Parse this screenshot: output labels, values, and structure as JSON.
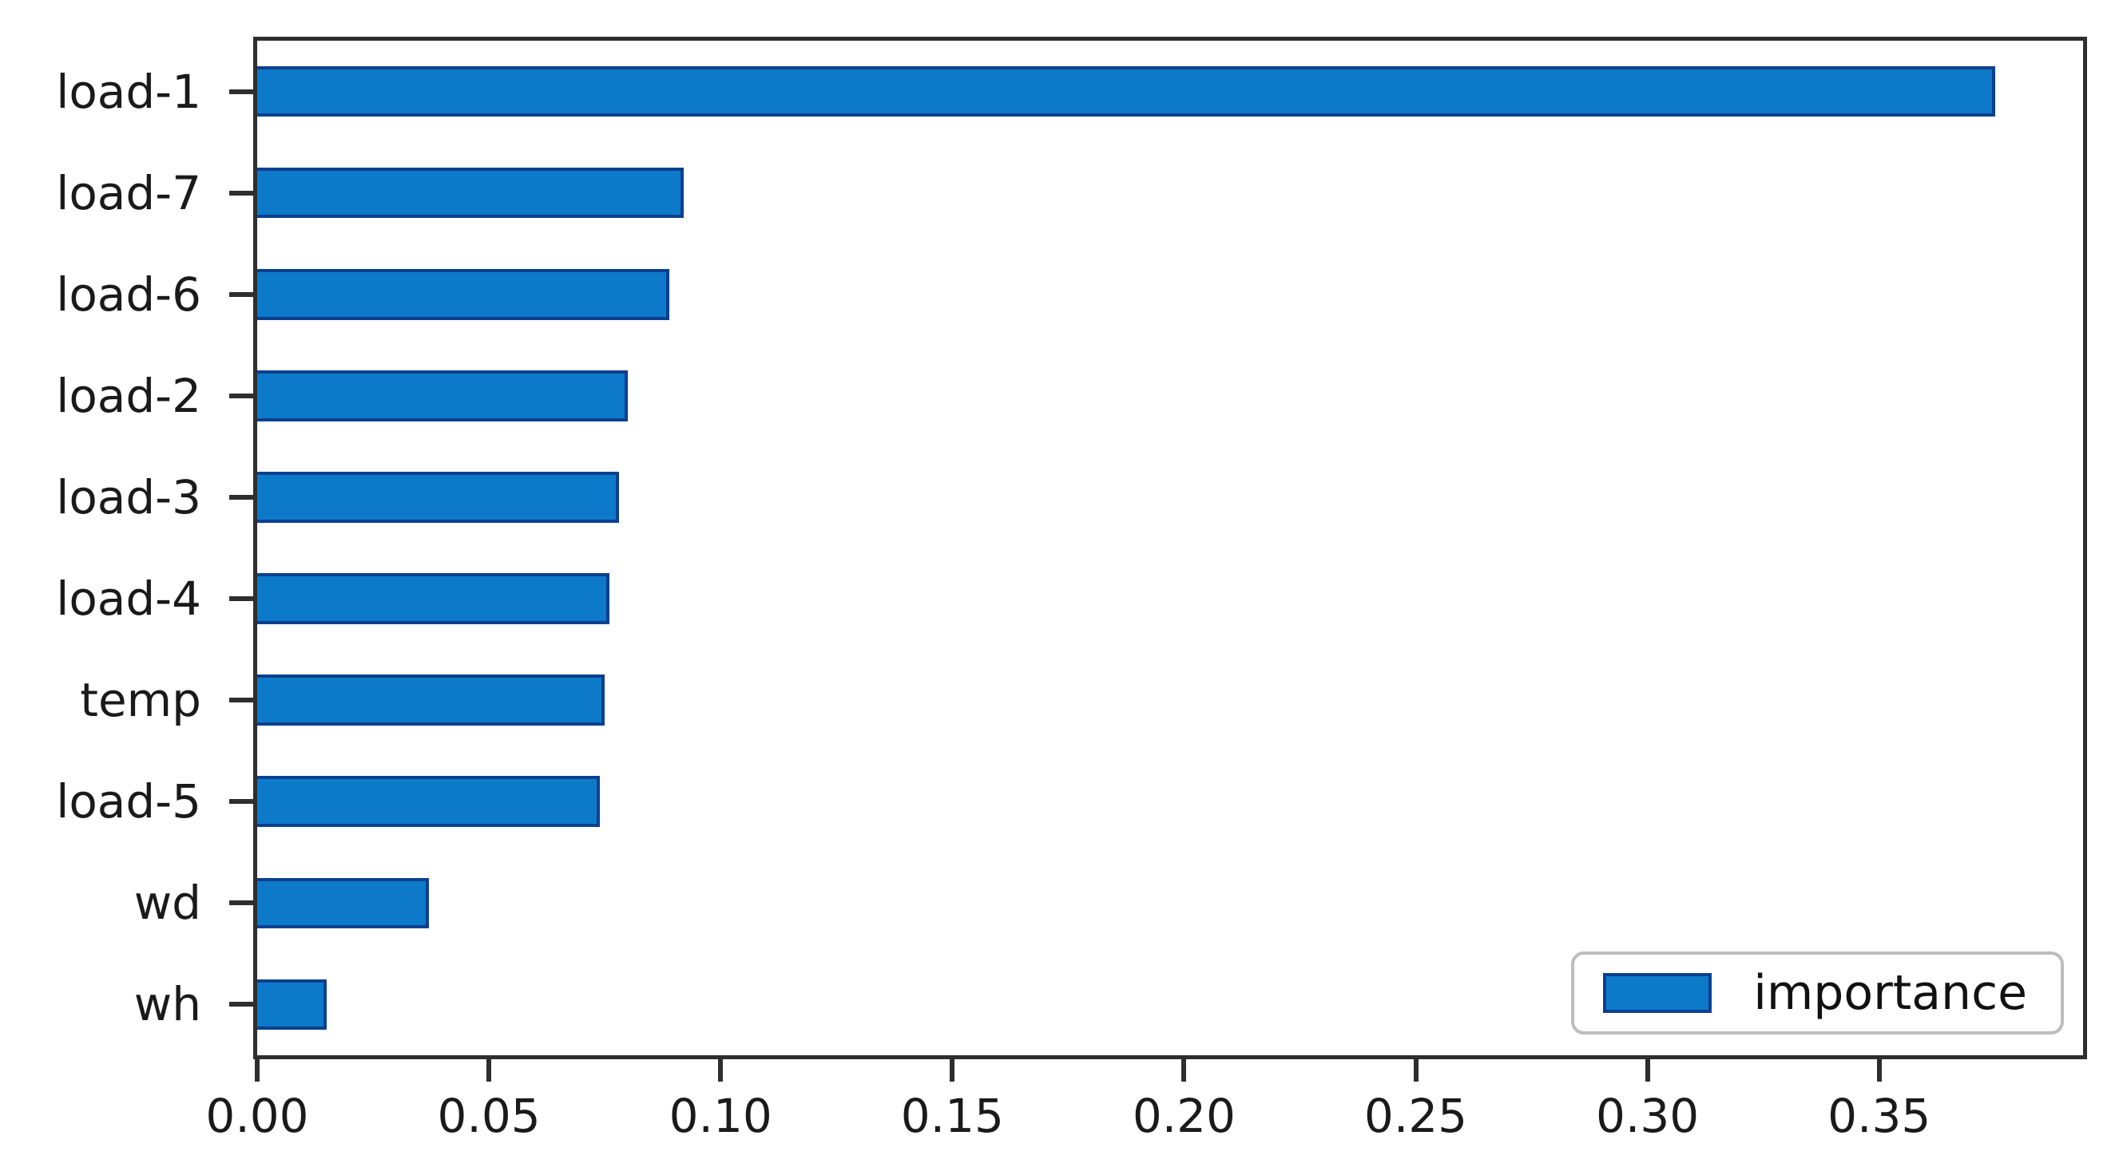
{
  "chart_data": {
    "type": "bar",
    "orientation": "horizontal",
    "title": "",
    "xlabel": "",
    "ylabel": "",
    "categories": [
      "load-1",
      "load-7",
      "load-6",
      "load-2",
      "load-3",
      "load-4",
      "temp",
      "load-5",
      "wd",
      "wh"
    ],
    "series": [
      {
        "name": "importance",
        "values": [
          0.375,
          0.092,
          0.089,
          0.08,
          0.078,
          0.076,
          0.075,
          0.074,
          0.037,
          0.015
        ]
      }
    ],
    "xlim": [
      0,
      0.394
    ],
    "x_ticks": [
      0.0,
      0.05,
      0.1,
      0.15,
      0.2,
      0.25,
      0.3,
      0.35
    ],
    "x_tick_labels": [
      "0.00",
      "0.05",
      "0.10",
      "0.15",
      "0.20",
      "0.25",
      "0.30",
      "0.35"
    ],
    "grid": false,
    "legend": {
      "label": "importance",
      "position": "lower right"
    },
    "colors": {
      "bar_fill": "#0d7ac9",
      "bar_edge": "#0c3f8f",
      "spine": "#2e2e2e",
      "text": "#1a1a1a",
      "legend_border": "#bdbdbd"
    }
  }
}
